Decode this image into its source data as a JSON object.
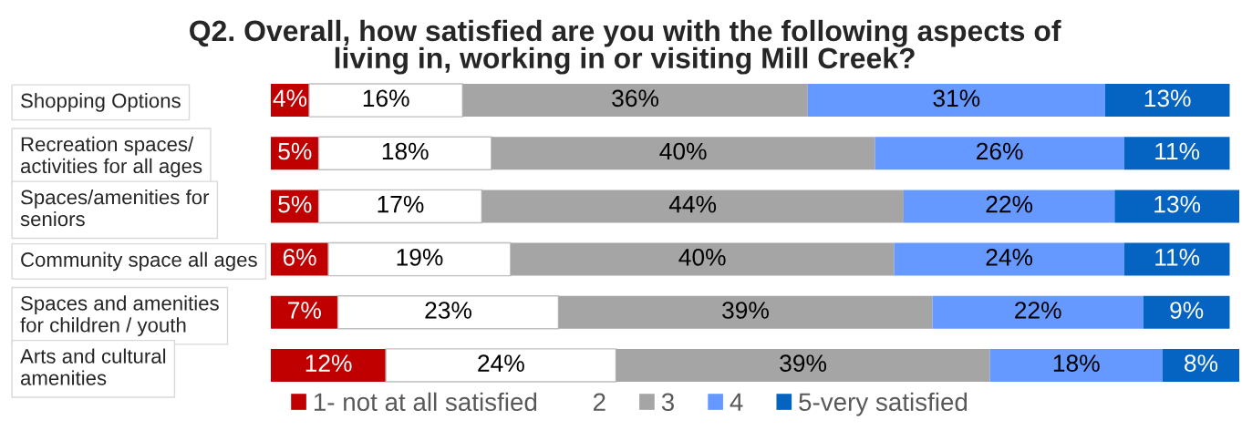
{
  "chart_data": {
    "type": "bar",
    "orientation": "horizontal",
    "stacked": true,
    "title": "Q2. Overall, how satisfied are you with the following aspects of\nliving in, working in or visiting Mill Creek?",
    "categories": [
      "Shopping Options",
      "Recreation spaces/\nactivities for all ages",
      "Spaces/amenities for\nseniors",
      "Community space all ages",
      "Spaces and amenities\nfor children / youth",
      "Arts and cultural\namenities"
    ],
    "series": [
      {
        "name": "1- not at all satisfied",
        "color": "#c00000",
        "values": [
          4,
          5,
          5,
          6,
          7,
          12
        ],
        "value_labels": [
          "4%",
          "5%",
          "5%",
          "6%",
          "7%",
          "12%"
        ]
      },
      {
        "name": "2",
        "color": "#ffffff",
        "values": [
          16,
          18,
          17,
          19,
          23,
          24
        ],
        "value_labels": [
          "16%",
          "18%",
          "17%",
          "19%",
          "23%",
          "24%"
        ]
      },
      {
        "name": "3",
        "color": "#a5a5a5",
        "values": [
          36,
          40,
          44,
          40,
          39,
          39
        ],
        "value_labels": [
          "36%",
          "40%",
          "44%",
          "40%",
          "39%",
          "39%"
        ]
      },
      {
        "name": "4",
        "color": "#6699ff",
        "values": [
          31,
          26,
          22,
          24,
          22,
          18
        ],
        "value_labels": [
          "31%",
          "26%",
          "22%",
          "24%",
          "22%",
          "18%"
        ]
      },
      {
        "name": "5-very satisfied",
        "color": "#0563c1",
        "values": [
          13,
          11,
          13,
          11,
          9,
          8
        ],
        "value_labels": [
          "13%",
          "11%",
          "13%",
          "11%",
          "9%",
          "8%"
        ]
      }
    ],
    "legend": "bottom",
    "tick_labels": "y",
    "grid": false
  }
}
